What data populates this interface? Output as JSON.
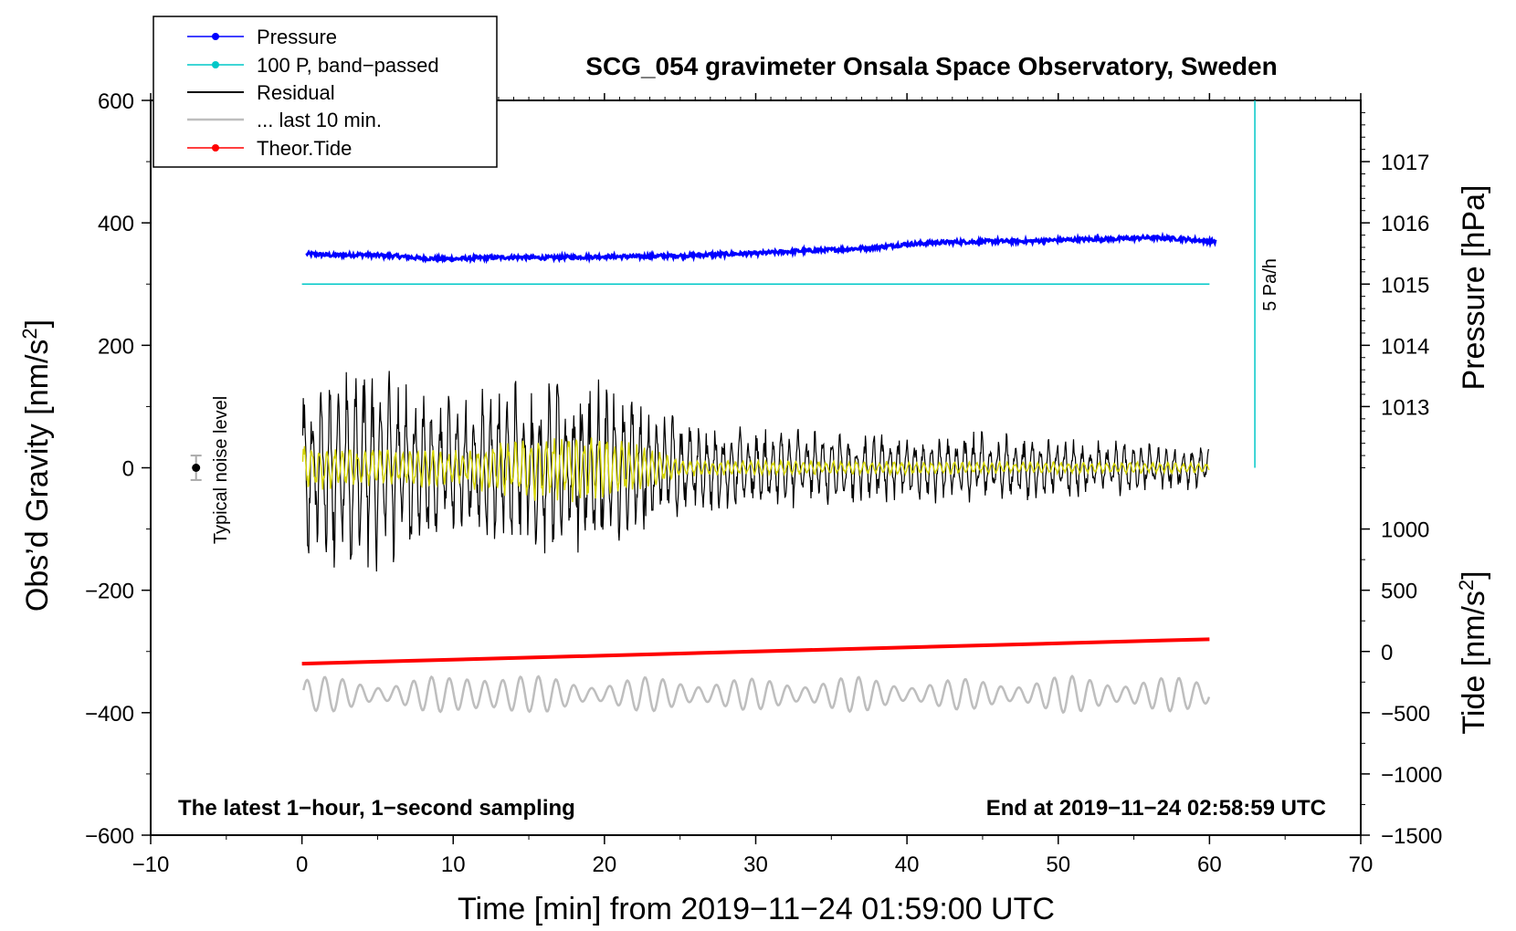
{
  "chart_data": {
    "type": "line",
    "title": "SCG_054 gravimeter Onsala Space Observatory, Sweden",
    "xlabel": "Time [min] from 2019−11−24 01:59:00 UTC",
    "ylabel_left_main": "Obs’d Gravity [nm/s",
    "ylabel_left_sup": "2",
    "ylabel_left_end": "]",
    "ylabel_right_pressure": "Pressure [hPa]",
    "ylabel_right_tide_main": "Tide [nm/s",
    "ylabel_right_tide_sup": "2",
    "ylabel_right_tide_end": "]",
    "xlim": [
      -10,
      70
    ],
    "ylim": [
      -600,
      600
    ],
    "x_ticks": [
      -10,
      0,
      10,
      20,
      30,
      40,
      50,
      60,
      70
    ],
    "x_tick_labels": [
      "−10",
      "0",
      "10",
      "20",
      "30",
      "40",
      "50",
      "60",
      "70"
    ],
    "y_ticks": [
      -600,
      -400,
      -200,
      0,
      200,
      400,
      600
    ],
    "y_tick_labels": [
      "−600",
      "−400",
      "−200",
      "0",
      "200",
      "400",
      "600"
    ],
    "pressure_ticks": [
      1013,
      1014,
      1015,
      1016,
      1017
    ],
    "pressure_tick_labels": [
      "1013",
      "1014",
      "1015",
      "1016",
      "1017"
    ],
    "pressure_scale": {
      "gravity_per_hPa": 100,
      "ref_hPa": 1015,
      "ref_gravity": 300
    },
    "tide_ticks": [
      -1500,
      -1000,
      -500,
      0,
      500,
      1000
    ],
    "tide_tick_labels": [
      "−1500",
      "−1000",
      "−500",
      "0",
      "500",
      "1000"
    ],
    "tide_scale": {
      "gravity_per_unit": 0.2,
      "ref_tide": 0,
      "ref_gravity": -300
    },
    "corner_left": "The latest 1−hour, 1−second sampling",
    "corner_right": "End at 2019−11−24 02:58:59 UTC",
    "noise_label": "Typical noise level",
    "noise_marker": {
      "x": -7,
      "y": 0,
      "err": 20
    },
    "rate_label": "5 Pa/h",
    "rate_bar": {
      "x": 63,
      "y_from": 0,
      "y_to": 600
    },
    "legend": [
      {
        "label": "Pressure",
        "color": "#0000ff",
        "marker": "dot"
      },
      {
        "label": "100 P, band−passed",
        "color": "#00c8c8",
        "marker": "dot"
      },
      {
        "label": "Residual",
        "color": "#000000",
        "marker": "line"
      },
      {
        "label": "... last 10 min.",
        "color": "#bebebe",
        "marker": "line"
      },
      {
        "label": "Theor.Tide",
        "color": "#ff0000",
        "marker": "dot"
      }
    ],
    "series": [
      {
        "name": "Pressure",
        "axis": "pressure_hPa",
        "color": "#0000ff",
        "x": [
          0,
          2,
          4,
          6,
          8,
          10,
          12,
          14,
          16,
          18,
          20,
          22,
          24,
          26,
          28,
          30,
          32,
          34,
          36,
          38,
          40,
          42,
          44,
          46,
          48,
          50,
          52,
          54,
          56,
          58,
          60
        ],
        "values": [
          1015.5,
          1015.47,
          1015.48,
          1015.46,
          1015.42,
          1015.41,
          1015.43,
          1015.44,
          1015.43,
          1015.44,
          1015.45,
          1015.45,
          1015.46,
          1015.47,
          1015.49,
          1015.5,
          1015.53,
          1015.55,
          1015.57,
          1015.6,
          1015.65,
          1015.68,
          1015.69,
          1015.7,
          1015.7,
          1015.72,
          1015.73,
          1015.74,
          1015.76,
          1015.74,
          1015.7
        ]
      },
      {
        "name": "100 P, band-passed",
        "axis": "gravity",
        "color": "#00c8c8",
        "x": [
          0,
          60
        ],
        "values": [
          300,
          300
        ]
      },
      {
        "name": "Residual",
        "axis": "gravity",
        "color": "#000000",
        "x": [
          0,
          5,
          10,
          15,
          20,
          25,
          30,
          35,
          40,
          45,
          50,
          55,
          60
        ],
        "envelope": [
          170,
          170,
          120,
          150,
          160,
          80,
          70,
          65,
          60,
          60,
          55,
          45,
          35
        ]
      },
      {
        "name": "Band-passed residual",
        "axis": "gravity",
        "color": "#d4d400",
        "x": [
          0,
          5,
          10,
          15,
          20,
          25,
          30,
          35,
          40,
          45,
          50,
          55,
          60
        ],
        "envelope": [
          40,
          35,
          30,
          55,
          60,
          15,
          12,
          12,
          12,
          10,
          10,
          10,
          8
        ]
      },
      {
        "name": "... last 10 min.",
        "axis": "gravity",
        "color": "#bebebe",
        "baseline": -370,
        "x": [
          0,
          5,
          10,
          12,
          15,
          20,
          25,
          30,
          35,
          40,
          45,
          50,
          55,
          60
        ],
        "envelope": [
          30,
          25,
          30,
          55,
          30,
          25,
          30,
          25,
          30,
          25,
          25,
          30,
          30,
          25
        ]
      },
      {
        "name": "Theor.Tide",
        "axis": "tide",
        "color": "#ff0000",
        "x": [
          0,
          60
        ],
        "values": [
          -100,
          100
        ]
      }
    ]
  }
}
